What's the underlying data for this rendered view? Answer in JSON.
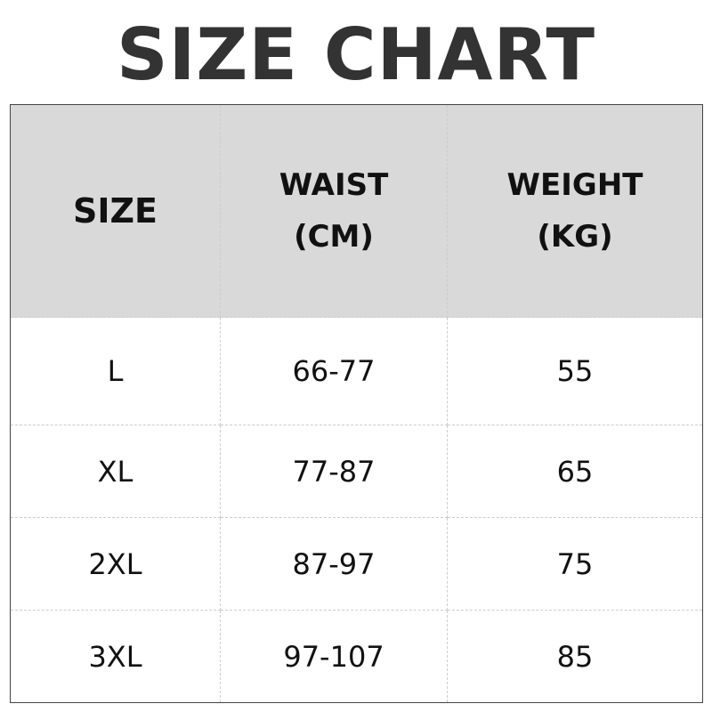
{
  "title": "SIZE CHART",
  "headers": {
    "size": "SIZE",
    "waist_line1": "WAIST",
    "waist_line2": "(CM)",
    "weight_line1": "WEIGHT",
    "weight_line2": "(KG)"
  },
  "rows": [
    {
      "size": "L",
      "waist": "66-77",
      "weight": "55"
    },
    {
      "size": "XL",
      "waist": "77-87",
      "weight": "65"
    },
    {
      "size": "2XL",
      "waist": "87-97",
      "weight": "75"
    },
    {
      "size": "3XL",
      "waist": "97-107",
      "weight": "85"
    }
  ],
  "colors": {
    "header_bg": "#d9d9d9",
    "title": "#333333"
  }
}
